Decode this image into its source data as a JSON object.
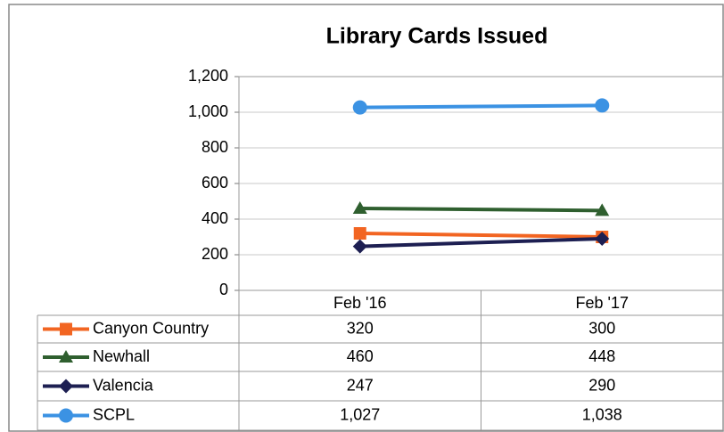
{
  "chart_data": {
    "type": "line",
    "title": "Library Cards Issued",
    "categories": [
      "Feb '16",
      "Feb '17"
    ],
    "series": [
      {
        "name": "Canyon Country",
        "color": "#f26522",
        "marker": "square",
        "values": [
          320,
          300
        ]
      },
      {
        "name": "Newhall",
        "color": "#2f5f2f",
        "marker": "triangle",
        "values": [
          460,
          448
        ]
      },
      {
        "name": "Valencia",
        "color": "#1d1f52",
        "marker": "diamond",
        "values": [
          247,
          290
        ]
      },
      {
        "name": "SCPL",
        "color": "#3b92e3",
        "marker": "circle",
        "values": [
          1027,
          1038
        ],
        "value_labels": [
          "1,027",
          "1,038"
        ]
      }
    ],
    "ylim": [
      0,
      1200
    ],
    "yticks": [
      0,
      200,
      400,
      600,
      800,
      {
        "value": 1000,
        "label": "1,000"
      },
      {
        "value": 1200,
        "label": "1,200"
      }
    ],
    "grid": true,
    "data_table": true
  }
}
